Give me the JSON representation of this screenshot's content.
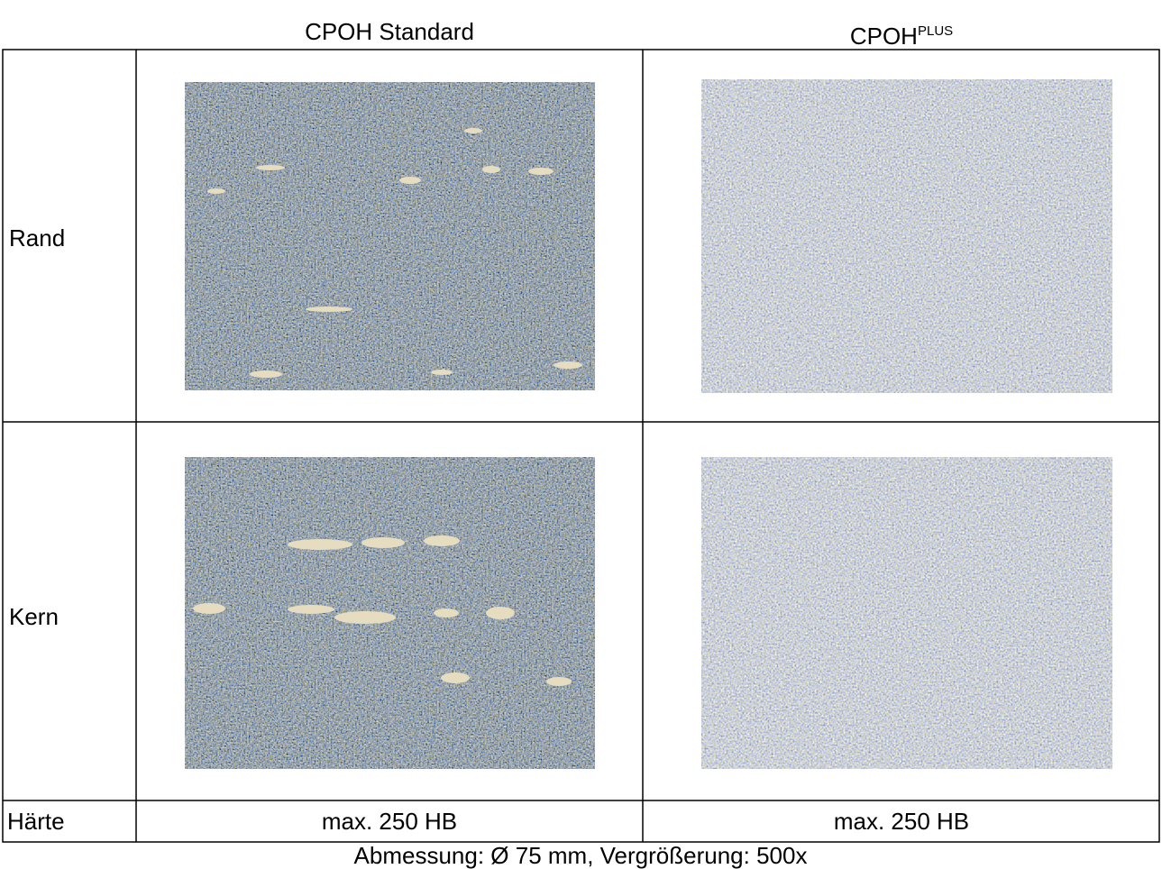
{
  "table": {
    "columns": [
      {
        "text": "CPOH Standard"
      },
      {
        "text": "CPOH",
        "superscript": "PLUS"
      }
    ],
    "rows": [
      {
        "label": "Rand"
      },
      {
        "label": "Kern"
      },
      {
        "label": "Härte",
        "values": [
          "max. 250 HB",
          "max. 250 HB"
        ]
      }
    ]
  },
  "caption": "Abmessung: Ø 75 mm, Vergrößerung: 500x"
}
